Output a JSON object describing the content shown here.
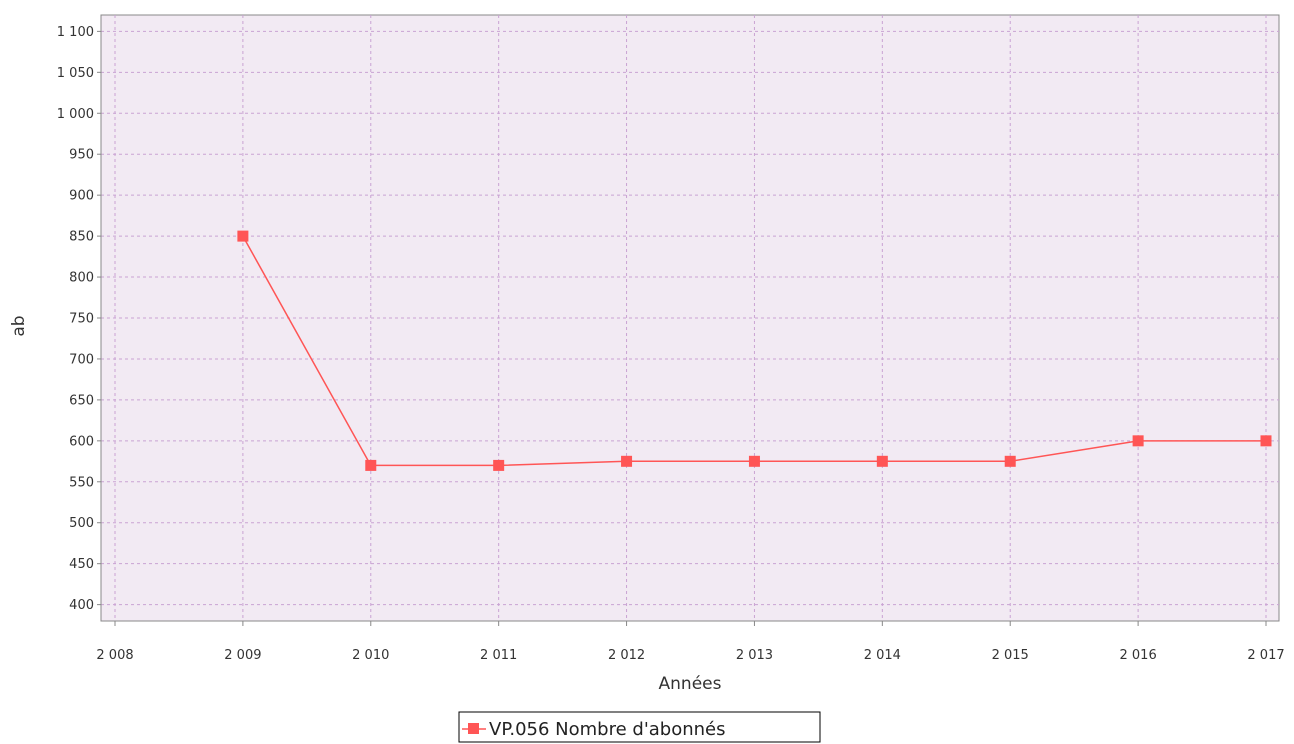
{
  "chart_data": {
    "type": "line",
    "xlabel": "Années",
    "ylabel": "ab",
    "xlim": [
      2008,
      2017
    ],
    "ylim": [
      380,
      1120
    ],
    "x_ticks": [
      2008,
      2009,
      2010,
      2011,
      2012,
      2013,
      2014,
      2015,
      2016,
      2017
    ],
    "x_tick_labels": [
      "2 008",
      "2 009",
      "2 010",
      "2 011",
      "2 012",
      "2 013",
      "2 014",
      "2 015",
      "2 016",
      "2 017"
    ],
    "y_ticks": [
      400,
      450,
      500,
      550,
      600,
      650,
      700,
      750,
      800,
      850,
      900,
      950,
      1000,
      1050,
      1100
    ],
    "y_tick_labels": [
      "400",
      "450",
      "500",
      "550",
      "600",
      "650",
      "700",
      "750",
      "800",
      "850",
      "900",
      "950",
      "1 000",
      "1 050",
      "1 100"
    ],
    "grid": true,
    "legend_position": "bottom-center",
    "series": [
      {
        "name": "VP.056 Nombre d'abonnés",
        "color": "#ff5555",
        "marker": "square",
        "x": [
          2009,
          2010,
          2011,
          2012,
          2013,
          2014,
          2015,
          2016,
          2017
        ],
        "y": [
          850,
          570,
          570,
          575,
          575,
          575,
          575,
          600,
          600
        ]
      }
    ],
    "colors": {
      "plot_background": "#f2eaf3",
      "grid": "#c9a3d3",
      "axis": "#888888"
    }
  }
}
